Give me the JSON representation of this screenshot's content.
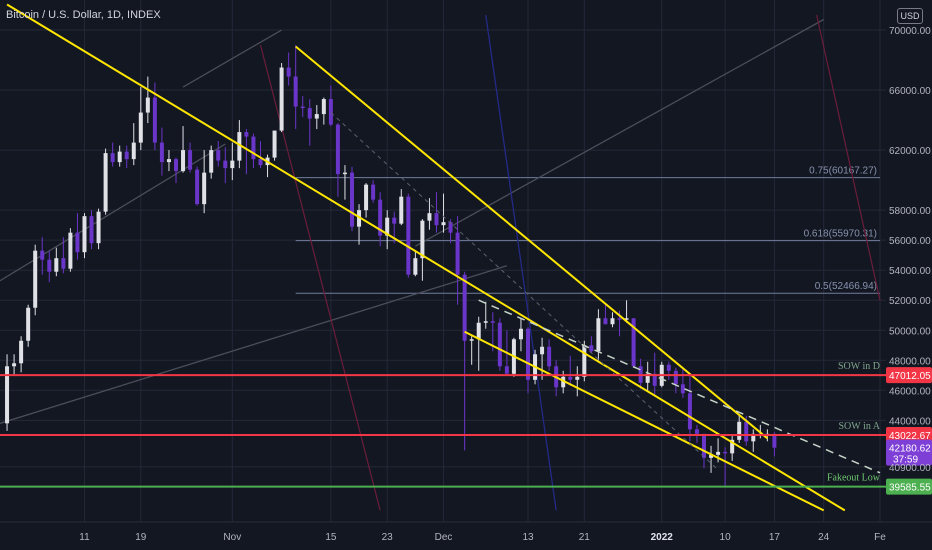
{
  "title": "Bitcoin / U.S. Dollar, 1D, INDEX",
  "currency_button": "USD",
  "countdown": "37:59",
  "colors": {
    "background": "#131722",
    "grid": "#242838",
    "bull": "#dfe1e6",
    "bear": "#6a35c9",
    "channel": "#ffe600",
    "support": "#f23645",
    "fakeout": "#4caf50",
    "fib": "#6f7d9c",
    "price_tag": "#7e3fd6"
  },
  "chart_data": {
    "type": "candlestick",
    "x_axis": {
      "ticks": [
        {
          "label": "11",
          "date": "2021-10-11"
        },
        {
          "label": "19",
          "date": "2021-10-19"
        },
        {
          "label": "Nov",
          "date": "2021-11-01"
        },
        {
          "label": "15",
          "date": "2021-11-15"
        },
        {
          "label": "23",
          "date": "2021-11-23"
        },
        {
          "label": "Dec",
          "date": "2021-12-01"
        },
        {
          "label": "13",
          "date": "2021-12-13"
        },
        {
          "label": "21",
          "date": "2021-12-21"
        },
        {
          "label": "2022",
          "date": "2022-01-01"
        },
        {
          "label": "10",
          "date": "2022-01-10"
        },
        {
          "label": "17",
          "date": "2022-01-17"
        },
        {
          "label": "24",
          "date": "2022-01-24"
        },
        {
          "label": "Fe",
          "date": "2022-02-01"
        }
      ],
      "range": [
        "2021-09-30",
        "2022-02-01"
      ]
    },
    "y_axis": {
      "ticks": [
        "70000.00",
        "66000.00",
        "62000.00",
        "58000.00",
        "56000.00",
        "54000.00",
        "52000.00",
        "50000.00",
        "48000.00",
        "46000.00",
        "44000.00",
        "40900.00"
      ],
      "range": [
        38000,
        71000
      ],
      "grid": true
    },
    "candles": [
      {
        "date": "2021-09-30",
        "o": 43800,
        "h": 48400,
        "l": 43300,
        "c": 47600
      },
      {
        "date": "2021-10-01",
        "o": 47600,
        "h": 48400,
        "l": 47000,
        "c": 47800
      },
      {
        "date": "2021-10-02",
        "o": 47800,
        "h": 49600,
        "l": 47200,
        "c": 49300
      },
      {
        "date": "2021-10-03",
        "o": 49300,
        "h": 51700,
        "l": 48900,
        "c": 51500
      },
      {
        "date": "2021-10-04",
        "o": 51500,
        "h": 55700,
        "l": 51000,
        "c": 55300
      },
      {
        "date": "2021-10-05",
        "o": 55300,
        "h": 56200,
        "l": 53700,
        "c": 54700
      },
      {
        "date": "2021-10-06",
        "o": 54700,
        "h": 55300,
        "l": 53200,
        "c": 53900
      },
      {
        "date": "2021-10-07",
        "o": 53900,
        "h": 55500,
        "l": 53600,
        "c": 54800
      },
      {
        "date": "2021-10-08",
        "o": 54800,
        "h": 56200,
        "l": 53800,
        "c": 54100
      },
      {
        "date": "2021-10-09",
        "o": 54100,
        "h": 56800,
        "l": 53900,
        "c": 56500
      },
      {
        "date": "2021-10-10",
        "o": 56500,
        "h": 57800,
        "l": 54700,
        "c": 55200
      },
      {
        "date": "2021-10-11",
        "o": 55200,
        "h": 57800,
        "l": 54800,
        "c": 57600
      },
      {
        "date": "2021-10-12",
        "o": 57600,
        "h": 58000,
        "l": 55400,
        "c": 55800
      },
      {
        "date": "2021-10-13",
        "o": 55800,
        "h": 58100,
        "l": 55400,
        "c": 57900
      },
      {
        "date": "2021-10-14",
        "o": 57900,
        "h": 62100,
        "l": 57700,
        "c": 61800
      },
      {
        "date": "2021-10-15",
        "o": 61800,
        "h": 62500,
        "l": 60900,
        "c": 61200
      },
      {
        "date": "2021-10-16",
        "o": 61200,
        "h": 62300,
        "l": 60900,
        "c": 61900
      },
      {
        "date": "2021-10-17",
        "o": 61900,
        "h": 62300,
        "l": 60800,
        "c": 61400
      },
      {
        "date": "2021-10-18",
        "o": 61400,
        "h": 63800,
        "l": 61000,
        "c": 62500
      },
      {
        "date": "2021-10-19",
        "o": 62500,
        "h": 66200,
        "l": 62000,
        "c": 64500
      },
      {
        "date": "2021-10-20",
        "o": 64500,
        "h": 66900,
        "l": 63800,
        "c": 65500
      },
      {
        "date": "2021-10-21",
        "o": 65500,
        "h": 66500,
        "l": 62000,
        "c": 62500
      },
      {
        "date": "2021-10-22",
        "o": 62500,
        "h": 63500,
        "l": 60300,
        "c": 61200
      },
      {
        "date": "2021-10-23",
        "o": 61200,
        "h": 62000,
        "l": 60600,
        "c": 61400
      },
      {
        "date": "2021-10-24",
        "o": 61400,
        "h": 61500,
        "l": 59800,
        "c": 60600
      },
      {
        "date": "2021-10-25",
        "o": 60600,
        "h": 63600,
        "l": 60500,
        "c": 62000
      },
      {
        "date": "2021-10-26",
        "o": 62000,
        "h": 62500,
        "l": 60500,
        "c": 60700
      },
      {
        "date": "2021-10-27",
        "o": 60700,
        "h": 60900,
        "l": 58300,
        "c": 58400
      },
      {
        "date": "2021-10-28",
        "o": 58400,
        "h": 62000,
        "l": 57800,
        "c": 60500
      },
      {
        "date": "2021-10-29",
        "o": 60500,
        "h": 62300,
        "l": 60100,
        "c": 62000
      },
      {
        "date": "2021-10-30",
        "o": 62000,
        "h": 62600,
        "l": 60900,
        "c": 61300
      },
      {
        "date": "2021-10-31",
        "o": 61300,
        "h": 62200,
        "l": 59800,
        "c": 60800
      },
      {
        "date": "2021-11-01",
        "o": 60800,
        "h": 62500,
        "l": 60000,
        "c": 61300
      },
      {
        "date": "2021-11-02",
        "o": 61300,
        "h": 64000,
        "l": 60800,
        "c": 63200
      },
      {
        "date": "2021-11-03",
        "o": 63200,
        "h": 63400,
        "l": 60400,
        "c": 62900
      },
      {
        "date": "2021-11-04",
        "o": 62900,
        "h": 63100,
        "l": 60800,
        "c": 61400
      },
      {
        "date": "2021-11-05",
        "o": 61400,
        "h": 62600,
        "l": 60800,
        "c": 61000
      },
      {
        "date": "2021-11-06",
        "o": 61000,
        "h": 61700,
        "l": 60200,
        "c": 61500
      },
      {
        "date": "2021-11-07",
        "o": 61500,
        "h": 63300,
        "l": 61300,
        "c": 63300
      },
      {
        "date": "2021-11-08",
        "o": 63300,
        "h": 67800,
        "l": 63200,
        "c": 67500
      },
      {
        "date": "2021-11-09",
        "o": 67500,
        "h": 68500,
        "l": 66300,
        "c": 66900
      },
      {
        "date": "2021-11-10",
        "o": 66900,
        "h": 69000,
        "l": 63400,
        "c": 64900
      },
      {
        "date": "2021-11-11",
        "o": 64900,
        "h": 65600,
        "l": 64200,
        "c": 64800
      },
      {
        "date": "2021-11-12",
        "o": 64800,
        "h": 65400,
        "l": 62300,
        "c": 64100
      },
      {
        "date": "2021-11-13",
        "o": 64100,
        "h": 65000,
        "l": 63400,
        "c": 64400
      },
      {
        "date": "2021-11-14",
        "o": 64400,
        "h": 65500,
        "l": 63700,
        "c": 65400
      },
      {
        "date": "2021-11-15",
        "o": 65400,
        "h": 66300,
        "l": 63600,
        "c": 63700
      },
      {
        "date": "2021-11-16",
        "o": 63700,
        "h": 63800,
        "l": 58900,
        "c": 60400
      },
      {
        "date": "2021-11-17",
        "o": 60400,
        "h": 61000,
        "l": 58700,
        "c": 60500
      },
      {
        "date": "2021-11-18",
        "o": 60500,
        "h": 60900,
        "l": 56600,
        "c": 56900
      },
      {
        "date": "2021-11-19",
        "o": 56900,
        "h": 58400,
        "l": 55700,
        "c": 58000
      },
      {
        "date": "2021-11-20",
        "o": 58000,
        "h": 59800,
        "l": 57500,
        "c": 59700
      },
      {
        "date": "2021-11-21",
        "o": 59700,
        "h": 60000,
        "l": 58500,
        "c": 58700
      },
      {
        "date": "2021-11-22",
        "o": 58700,
        "h": 59200,
        "l": 55600,
        "c": 56300
      },
      {
        "date": "2021-11-23",
        "o": 56300,
        "h": 58000,
        "l": 55400,
        "c": 57500
      },
      {
        "date": "2021-11-24",
        "o": 57500,
        "h": 57900,
        "l": 55800,
        "c": 57100
      },
      {
        "date": "2021-11-25",
        "o": 57100,
        "h": 59400,
        "l": 57000,
        "c": 58900
      },
      {
        "date": "2021-11-26",
        "o": 58900,
        "h": 59100,
        "l": 53500,
        "c": 53700
      },
      {
        "date": "2021-11-27",
        "o": 53700,
        "h": 55300,
        "l": 53600,
        "c": 54800
      },
      {
        "date": "2021-11-28",
        "o": 54800,
        "h": 57400,
        "l": 53300,
        "c": 57300
      },
      {
        "date": "2021-11-29",
        "o": 57300,
        "h": 58800,
        "l": 56700,
        "c": 57800
      },
      {
        "date": "2021-11-30",
        "o": 57800,
        "h": 59200,
        "l": 56500,
        "c": 57000
      },
      {
        "date": "2021-12-01",
        "o": 57000,
        "h": 59100,
        "l": 56500,
        "c": 57200
      },
      {
        "date": "2021-12-02",
        "o": 57200,
        "h": 57400,
        "l": 55800,
        "c": 56500
      },
      {
        "date": "2021-12-03",
        "o": 56500,
        "h": 57600,
        "l": 51700,
        "c": 53700
      },
      {
        "date": "2021-12-04",
        "o": 53700,
        "h": 53900,
        "l": 42000,
        "c": 49300
      },
      {
        "date": "2021-12-05",
        "o": 49300,
        "h": 49600,
        "l": 47700,
        "c": 49400
      },
      {
        "date": "2021-12-06",
        "o": 49400,
        "h": 50900,
        "l": 47300,
        "c": 50500
      },
      {
        "date": "2021-12-07",
        "o": 50500,
        "h": 51900,
        "l": 50100,
        "c": 50600
      },
      {
        "date": "2021-12-08",
        "o": 50600,
        "h": 51200,
        "l": 48600,
        "c": 50500
      },
      {
        "date": "2021-12-09",
        "o": 50500,
        "h": 50800,
        "l": 47300,
        "c": 47600
      },
      {
        "date": "2021-12-10",
        "o": 47600,
        "h": 50000,
        "l": 47100,
        "c": 47100
      },
      {
        "date": "2021-12-11",
        "o": 47100,
        "h": 49500,
        "l": 46900,
        "c": 49400
      },
      {
        "date": "2021-12-12",
        "o": 49400,
        "h": 50800,
        "l": 48600,
        "c": 50100
      },
      {
        "date": "2021-12-13",
        "o": 50100,
        "h": 50200,
        "l": 45800,
        "c": 46700
      },
      {
        "date": "2021-12-14",
        "o": 46700,
        "h": 48700,
        "l": 46400,
        "c": 48400
      },
      {
        "date": "2021-12-15",
        "o": 48400,
        "h": 49500,
        "l": 46700,
        "c": 48900
      },
      {
        "date": "2021-12-16",
        "o": 48900,
        "h": 49400,
        "l": 47300,
        "c": 47600
      },
      {
        "date": "2021-12-17",
        "o": 47600,
        "h": 48000,
        "l": 45600,
        "c": 46200
      },
      {
        "date": "2021-12-18",
        "o": 46200,
        "h": 47300,
        "l": 45800,
        "c": 46900
      },
      {
        "date": "2021-12-19",
        "o": 46900,
        "h": 48300,
        "l": 46300,
        "c": 46700
      },
      {
        "date": "2021-12-20",
        "o": 46700,
        "h": 47600,
        "l": 45600,
        "c": 46900
      },
      {
        "date": "2021-12-21",
        "o": 46900,
        "h": 49300,
        "l": 46600,
        "c": 49000
      },
      {
        "date": "2021-12-22",
        "o": 49000,
        "h": 49600,
        "l": 48500,
        "c": 48600
      },
      {
        "date": "2021-12-23",
        "o": 48600,
        "h": 51400,
        "l": 48000,
        "c": 50800
      },
      {
        "date": "2021-12-24",
        "o": 50800,
        "h": 51800,
        "l": 50400,
        "c": 50400
      },
      {
        "date": "2021-12-25",
        "o": 50400,
        "h": 51200,
        "l": 50200,
        "c": 50800
      },
      {
        "date": "2021-12-26",
        "o": 50800,
        "h": 51300,
        "l": 49600,
        "c": 50700
      },
      {
        "date": "2021-12-27",
        "o": 50700,
        "h": 52000,
        "l": 50500,
        "c": 50800
      },
      {
        "date": "2021-12-28",
        "o": 50800,
        "h": 50800,
        "l": 47500,
        "c": 47600
      },
      {
        "date": "2021-12-29",
        "o": 47600,
        "h": 48100,
        "l": 46100,
        "c": 46500
      },
      {
        "date": "2021-12-30",
        "o": 46500,
        "h": 47900,
        "l": 46000,
        "c": 47100
      },
      {
        "date": "2021-12-31",
        "o": 47100,
        "h": 48500,
        "l": 45700,
        "c": 46300
      },
      {
        "date": "2022-01-01",
        "o": 46300,
        "h": 47900,
        "l": 46200,
        "c": 47700
      },
      {
        "date": "2022-01-02",
        "o": 47700,
        "h": 47900,
        "l": 46700,
        "c": 47300
      },
      {
        "date": "2022-01-03",
        "o": 47300,
        "h": 47500,
        "l": 45800,
        "c": 46400
      },
      {
        "date": "2022-01-04",
        "o": 46400,
        "h": 47500,
        "l": 45500,
        "c": 45800
      },
      {
        "date": "2022-01-05",
        "o": 45800,
        "h": 47000,
        "l": 42600,
        "c": 43400
      },
      {
        "date": "2022-01-06",
        "o": 43400,
        "h": 43700,
        "l": 42500,
        "c": 43100
      },
      {
        "date": "2022-01-07",
        "o": 43100,
        "h": 43100,
        "l": 40800,
        "c": 41500
      },
      {
        "date": "2022-01-08",
        "o": 41500,
        "h": 42300,
        "l": 40500,
        "c": 41700
      },
      {
        "date": "2022-01-09",
        "o": 41700,
        "h": 42800,
        "l": 41200,
        "c": 41900
      },
      {
        "date": "2022-01-10",
        "o": 41900,
        "h": 42200,
        "l": 39600,
        "c": 41800
      },
      {
        "date": "2022-01-11",
        "o": 41800,
        "h": 43000,
        "l": 41300,
        "c": 42700
      },
      {
        "date": "2022-01-12",
        "o": 42700,
        "h": 44300,
        "l": 42500,
        "c": 43900
      },
      {
        "date": "2022-01-13",
        "o": 43900,
        "h": 44300,
        "l": 42300,
        "c": 42600
      },
      {
        "date": "2022-01-14",
        "o": 42600,
        "h": 43400,
        "l": 41900,
        "c": 43100
      },
      {
        "date": "2022-01-15",
        "o": 43100,
        "h": 43700,
        "l": 42800,
        "c": 43100
      },
      {
        "date": "2022-01-16",
        "o": 43100,
        "h": 43400,
        "l": 42600,
        "c": 43100
      },
      {
        "date": "2022-01-17",
        "o": 43100,
        "h": 43200,
        "l": 41600,
        "c": 42180
      }
    ],
    "price_levels": [
      {
        "label": "SOW in D",
        "value": 47012.05,
        "value_label": "47012.05",
        "color": "#f23645"
      },
      {
        "label": "SOW in A",
        "value": 43022.67,
        "value_label": "43022.67",
        "color": "#f23645"
      },
      {
        "label": "Fakeout Low",
        "value": 39585.55,
        "value_label": "39585.55",
        "color": "#4caf50"
      }
    ],
    "fib_levels": [
      {
        "label": "0.75(60167.27)",
        "value": 60167.27
      },
      {
        "label": "0.618(55970.31)",
        "value": 55970.31
      },
      {
        "label": "0.5(52466.94)",
        "value": 52466.94
      }
    ],
    "last_price": {
      "value": 42180.62,
      "label": "42180.62"
    },
    "channel": {
      "upper": [
        [
          "2021-11-10",
          68900
        ],
        [
          "2022-01-16",
          42800
        ]
      ],
      "lower": [
        [
          "2021-09-30",
          71700
        ],
        [
          "2022-01-27",
          38000
        ]
      ],
      "lower_right": [
        [
          "2021-12-04",
          49900
        ],
        [
          "2022-01-24",
          38000
        ]
      ],
      "mid_dashed": [
        [
          "2021-11-15",
          64500
        ],
        [
          "2022-01-09",
          40700
        ]
      ],
      "resistance_dashed": [
        [
          "2021-12-06",
          52000
        ],
        [
          "2022-02-01",
          40500
        ]
      ]
    },
    "guide_lines_gray": [
      [
        [
          "2021-09-29",
          53300
        ],
        [
          "2021-10-31",
          62400
        ]
      ],
      [
        [
          "2021-09-29",
          43800
        ],
        [
          "2021-12-10",
          54300
        ]
      ],
      [
        [
          "2021-11-27",
          55600
        ],
        [
          "2022-01-24",
          70700
        ]
      ],
      [
        [
          "2021-10-25",
          66200
        ],
        [
          "2021-11-08",
          70000
        ]
      ]
    ],
    "guide_lines_red": [
      [
        [
          "2021-11-05",
          69000
        ],
        [
          "2021-11-22",
          38000
        ]
      ],
      [
        [
          "2022-01-23",
          71000
        ],
        [
          "2022-02-01",
          52000
        ]
      ]
    ],
    "guide_lines_blue": [
      [
        [
          "2021-12-07",
          71000
        ],
        [
          "2021-12-17",
          38000
        ]
      ]
    ]
  }
}
